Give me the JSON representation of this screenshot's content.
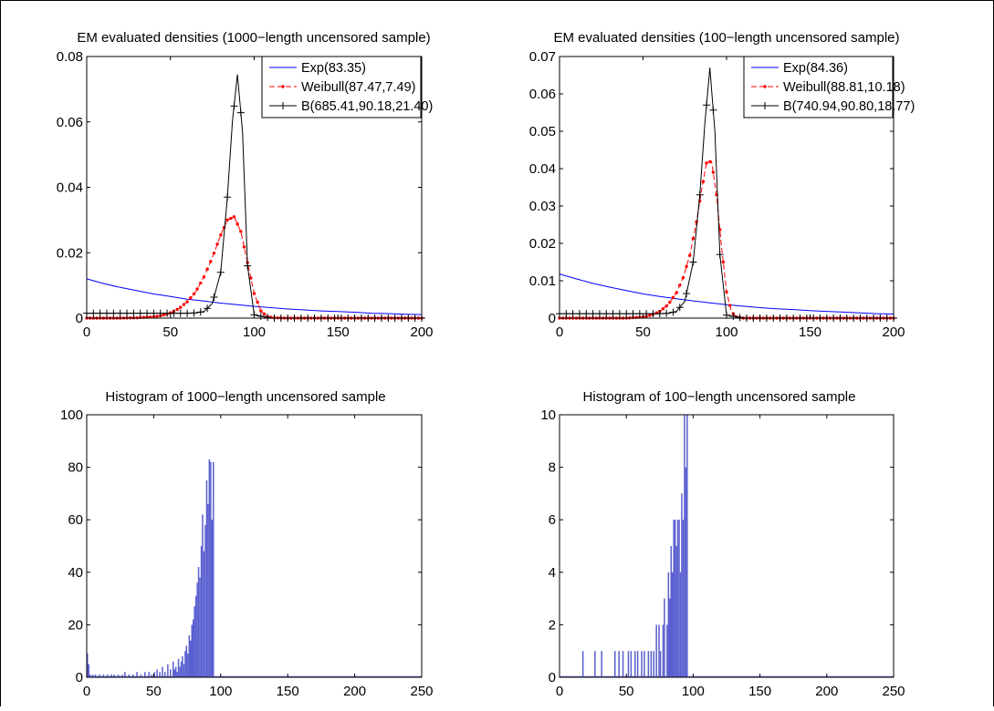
{
  "figure": {
    "background": "#ffffff",
    "border_color": "#000000"
  },
  "colors": {
    "exp": "#0000ff",
    "weibull": "#ff0000",
    "beta": "#000000",
    "histogram_bar": "#5a5fd0"
  },
  "chart_data": [
    {
      "id": "density-1000",
      "type": "line",
      "title": "EM evaluated densities (1000−length uncensored sample)",
      "xlabel": "",
      "ylabel": "",
      "xlim": [
        0,
        200
      ],
      "ylim": [
        0,
        0.08
      ],
      "xticks": [
        0,
        50,
        100,
        150,
        200
      ],
      "xtick_labels": [
        "0",
        "50",
        "100",
        "150",
        "200"
      ],
      "yticks": [
        0,
        0.02,
        0.04,
        0.06,
        0.08
      ],
      "ytick_labels": [
        "0",
        "0.02",
        "0.04",
        "0.06",
        "0.08"
      ],
      "grid": false,
      "legend_position": "top-right",
      "series": [
        {
          "name": "Exp(83.35)",
          "style": "solid",
          "marker": "none",
          "color": "#0000ff",
          "x": [
            0,
            10,
            20,
            30,
            40,
            50,
            60,
            70,
            80,
            90,
            100,
            110,
            120,
            130,
            140,
            150,
            160,
            170,
            180,
            190,
            200
          ],
          "y": [
            0.012,
            0.0106,
            0.0094,
            0.0084,
            0.0074,
            0.0066,
            0.0058,
            0.0052,
            0.0046,
            0.0041,
            0.0036,
            0.0032,
            0.0028,
            0.0025,
            0.0022,
            0.002,
            0.0018,
            0.0015,
            0.0014,
            0.0012,
            0.0011
          ]
        },
        {
          "name": "Weibull(87.47,7.49)",
          "style": "dashed",
          "marker": "dot",
          "color": "#ff0000",
          "x": [
            0,
            10,
            20,
            30,
            40,
            45,
            50,
            55,
            60,
            65,
            70,
            75,
            80,
            84,
            88,
            92,
            96,
            100,
            104,
            108,
            112,
            120,
            140,
            160,
            180,
            200
          ],
          "y": [
            0,
            0,
            0,
            0.0001,
            0.0004,
            0.0008,
            0.0016,
            0.0029,
            0.005,
            0.008,
            0.0126,
            0.0185,
            0.0254,
            0.03,
            0.031,
            0.0265,
            0.017,
            0.0075,
            0.0022,
            0.0004,
            0.0001,
            0,
            0,
            0,
            0,
            0
          ]
        },
        {
          "name": "B(685.41,90.18,21.40)",
          "style": "solid",
          "marker": "plus",
          "color": "#000000",
          "x": [
            0,
            10,
            20,
            30,
            40,
            50,
            60,
            65,
            70,
            75,
            80,
            84,
            87,
            90,
            93,
            96,
            100,
            110,
            120,
            140,
            160,
            180,
            200
          ],
          "y": [
            0.0015,
            0.0015,
            0.0015,
            0.0015,
            0.0015,
            0.0015,
            0.0015,
            0.0016,
            0.002,
            0.0045,
            0.014,
            0.037,
            0.06,
            0.0745,
            0.057,
            0.016,
            0.001,
            0,
            0,
            0,
            0,
            0,
            0
          ]
        }
      ]
    },
    {
      "id": "density-100",
      "type": "line",
      "title": "EM evaluated densities (100−length uncensored sample)",
      "xlabel": "",
      "ylabel": "",
      "xlim": [
        0,
        200
      ],
      "ylim": [
        0,
        0.07
      ],
      "xticks": [
        0,
        50,
        100,
        150,
        200
      ],
      "xtick_labels": [
        "0",
        "50",
        "100",
        "150",
        "200"
      ],
      "yticks": [
        0,
        0.01,
        0.02,
        0.03,
        0.04,
        0.05,
        0.06,
        0.07
      ],
      "ytick_labels": [
        "0",
        "0.01",
        "0.02",
        "0.03",
        "0.04",
        "0.05",
        "0.06",
        "0.07"
      ],
      "grid": false,
      "legend_position": "top-right",
      "series": [
        {
          "name": "Exp(84.36)",
          "style": "solid",
          "marker": "none",
          "color": "#0000ff",
          "x": [
            0,
            10,
            20,
            30,
            40,
            50,
            60,
            70,
            80,
            90,
            100,
            110,
            120,
            130,
            140,
            150,
            160,
            170,
            180,
            190,
            200
          ],
          "y": [
            0.0118,
            0.0105,
            0.0093,
            0.0083,
            0.0074,
            0.0065,
            0.0058,
            0.0052,
            0.0046,
            0.0041,
            0.0036,
            0.0032,
            0.0028,
            0.0025,
            0.0023,
            0.002,
            0.0018,
            0.0016,
            0.0014,
            0.0012,
            0.0011
          ]
        },
        {
          "name": "Weibull(88.81,10.18)",
          "style": "dashed",
          "marker": "dot",
          "color": "#ff0000",
          "x": [
            0,
            20,
            40,
            50,
            55,
            60,
            65,
            70,
            74,
            78,
            82,
            85,
            88,
            91,
            94,
            97,
            100,
            103,
            106,
            110,
            120,
            140,
            160,
            180,
            200
          ],
          "y": [
            0,
            0,
            0,
            0.0003,
            0.0008,
            0.0018,
            0.0036,
            0.0068,
            0.0108,
            0.0168,
            0.0258,
            0.034,
            0.0415,
            0.042,
            0.033,
            0.019,
            0.007,
            0.0016,
            0.0003,
            0,
            0,
            0,
            0,
            0,
            0
          ]
        },
        {
          "name": "B(740.94,90.80,18.77)",
          "style": "solid",
          "marker": "plus",
          "color": "#000000",
          "x": [
            0,
            10,
            20,
            30,
            40,
            50,
            60,
            65,
            70,
            75,
            80,
            84,
            87,
            90,
            93,
            96,
            100,
            110,
            120,
            140,
            160,
            180,
            200
          ],
          "y": [
            0.0012,
            0.0012,
            0.0012,
            0.0012,
            0.0012,
            0.0012,
            0.0012,
            0.0013,
            0.0018,
            0.0045,
            0.015,
            0.033,
            0.052,
            0.067,
            0.05,
            0.017,
            0.0008,
            0,
            0,
            0,
            0,
            0,
            0
          ]
        }
      ]
    },
    {
      "id": "hist-1000",
      "type": "bar",
      "title": "Histogram of 1000−length uncensored sample",
      "xlabel": "",
      "ylabel": "",
      "xlim": [
        0,
        250
      ],
      "ylim": [
        0,
        100
      ],
      "xticks": [
        0,
        50,
        100,
        150,
        200,
        250
      ],
      "xtick_labels": [
        "0",
        "50",
        "100",
        "150",
        "200",
        "250"
      ],
      "yticks": [
        0,
        20,
        40,
        60,
        80,
        100
      ],
      "ytick_labels": [
        "0",
        "20",
        "40",
        "60",
        "80",
        "100"
      ],
      "grid": false,
      "bin_width": 1,
      "color": "#5a5fd0",
      "bins": [
        [
          0,
          9
        ],
        [
          1,
          5
        ],
        [
          2,
          1
        ],
        [
          4,
          1
        ],
        [
          6,
          1
        ],
        [
          9,
          1
        ],
        [
          12,
          1
        ],
        [
          15,
          1
        ],
        [
          18,
          1
        ],
        [
          20,
          1
        ],
        [
          23,
          1
        ],
        [
          26,
          1
        ],
        [
          28,
          2
        ],
        [
          31,
          1
        ],
        [
          34,
          1
        ],
        [
          37,
          2
        ],
        [
          40,
          1
        ],
        [
          43,
          2
        ],
        [
          46,
          2
        ],
        [
          48,
          1
        ],
        [
          50,
          2
        ],
        [
          52,
          3
        ],
        [
          54,
          2
        ],
        [
          56,
          4
        ],
        [
          58,
          2
        ],
        [
          60,
          5
        ],
        [
          62,
          3
        ],
        [
          64,
          6
        ],
        [
          65,
          3
        ],
        [
          66,
          4
        ],
        [
          67,
          2
        ],
        [
          68,
          7
        ],
        [
          69,
          4
        ],
        [
          70,
          6
        ],
        [
          71,
          8
        ],
        [
          72,
          5
        ],
        [
          73,
          10
        ],
        [
          74,
          12
        ],
        [
          75,
          9
        ],
        [
          76,
          16
        ],
        [
          77,
          14
        ],
        [
          78,
          20
        ],
        [
          79,
          22
        ],
        [
          80,
          27
        ],
        [
          81,
          31
        ],
        [
          82,
          36
        ],
        [
          83,
          42
        ],
        [
          84,
          38
        ],
        [
          85,
          50
        ],
        [
          86,
          62
        ],
        [
          87,
          48
        ],
        [
          88,
          58
        ],
        [
          89,
          75
        ],
        [
          90,
          66
        ],
        [
          91,
          83
        ],
        [
          92,
          82
        ],
        [
          93,
          60
        ],
        [
          94,
          82
        ]
      ]
    },
    {
      "id": "hist-100",
      "type": "bar",
      "title": "Histogram of 100−length uncensored sample",
      "xlabel": "",
      "ylabel": "",
      "xlim": [
        0,
        250
      ],
      "ylim": [
        0,
        10
      ],
      "xticks": [
        0,
        50,
        100,
        150,
        200,
        250
      ],
      "xtick_labels": [
        "0",
        "50",
        "100",
        "150",
        "200",
        "250"
      ],
      "yticks": [
        0,
        2,
        4,
        6,
        8,
        10
      ],
      "ytick_labels": [
        "0",
        "2",
        "4",
        "6",
        "8",
        "10"
      ],
      "grid": false,
      "bin_width": 1,
      "color": "#5a5fd0",
      "bins": [
        [
          17,
          1
        ],
        [
          26,
          1
        ],
        [
          31,
          1
        ],
        [
          41,
          1
        ],
        [
          44,
          1
        ],
        [
          47,
          1
        ],
        [
          51,
          1
        ],
        [
          53,
          1
        ],
        [
          56,
          1
        ],
        [
          58,
          1
        ],
        [
          61,
          1
        ],
        [
          63,
          1
        ],
        [
          66,
          1
        ],
        [
          68,
          1
        ],
        [
          70,
          1
        ],
        [
          72,
          2
        ],
        [
          74,
          2
        ],
        [
          75,
          1
        ],
        [
          77,
          2
        ],
        [
          78,
          3
        ],
        [
          80,
          2
        ],
        [
          81,
          4
        ],
        [
          82,
          3
        ],
        [
          83,
          5
        ],
        [
          84,
          4
        ],
        [
          85,
          6
        ],
        [
          86,
          6
        ],
        [
          87,
          5
        ],
        [
          88,
          6
        ],
        [
          89,
          6
        ],
        [
          90,
          4
        ],
        [
          91,
          7
        ],
        [
          92,
          6
        ],
        [
          93,
          10
        ],
        [
          94,
          8
        ],
        [
          95,
          10
        ]
      ]
    }
  ]
}
